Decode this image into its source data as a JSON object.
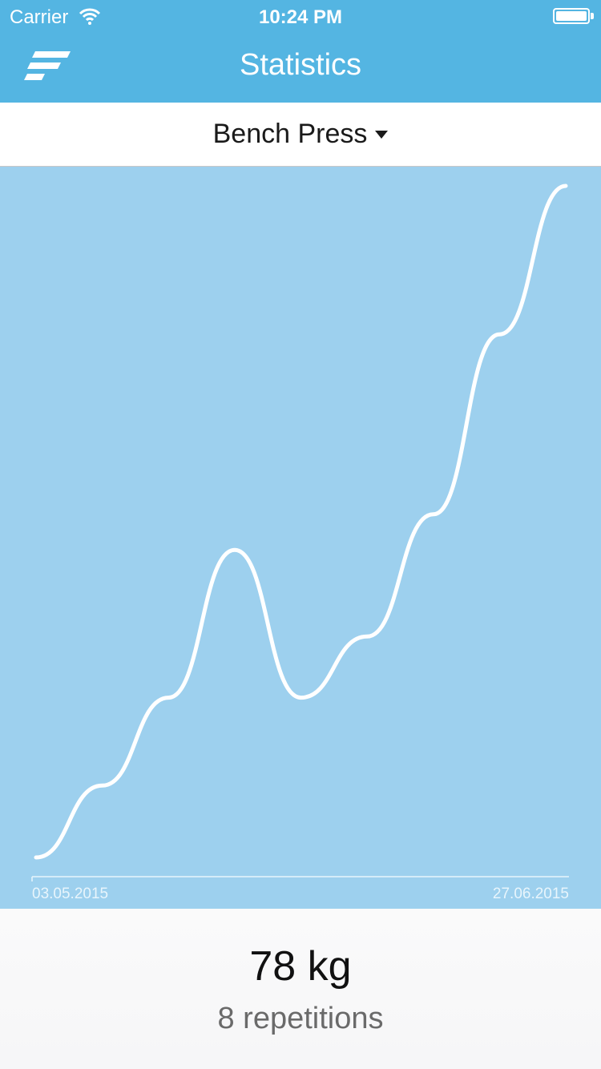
{
  "status_bar": {
    "carrier": "Carrier",
    "time": "10:24 PM",
    "icons": [
      "wifi-icon",
      "battery-icon"
    ]
  },
  "nav_bar": {
    "title": "Statistics",
    "logo_icon": "app-logo-icon"
  },
  "exercise_selector": {
    "selected": "Bench Press",
    "icon": "caret-down-icon"
  },
  "chart_data": {
    "type": "line",
    "x_start_label": "03.05.2015",
    "x_end_label": "27.06.2015",
    "x": [
      "03.05.2015",
      "10.05.2015",
      "17.05.2015",
      "24.05.2015",
      "31.05.2015",
      "07.06.2015",
      "14.06.2015",
      "21.06.2015",
      "27.06.2015"
    ],
    "values": [
      0,
      0.107,
      0.238,
      0.458,
      0.238,
      0.329,
      0.511,
      0.779,
      1
    ],
    "ylim": [
      0,
      1
    ],
    "grid": false,
    "line_color": "#ffffff",
    "background_color": "#9dd0ee"
  },
  "detail": {
    "weight": "78 kg",
    "repetitions": "8 repetitions"
  },
  "colors": {
    "accent": "#54b5e2",
    "chart_bg": "#9dd0ee"
  }
}
